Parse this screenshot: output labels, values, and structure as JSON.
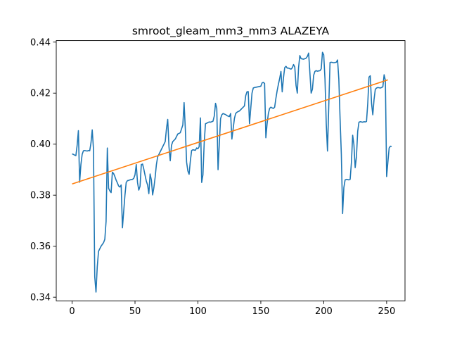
{
  "chart_data": {
    "type": "line",
    "title": "smroot_gleam_mm3_mm3 ALAZEYA",
    "xlabel": "",
    "ylabel": "",
    "xlim": [
      -12.6,
      264.6
    ],
    "ylim": [
      0.3386,
      0.4406
    ],
    "xticks": [
      0,
      50,
      100,
      150,
      200,
      250
    ],
    "yticks": [
      0.34,
      0.36,
      0.38,
      0.4,
      0.42,
      0.44
    ],
    "ytick_labels": [
      "0.34",
      "0.36",
      "0.38",
      "0.40",
      "0.42",
      "0.44"
    ],
    "grid": false,
    "colors": {
      "series": "#1f77b4",
      "trend": "#ff7f0e"
    },
    "series": [
      {
        "values": [
          0.3962,
          0.396,
          0.3957,
          0.3955,
          0.3995,
          0.4053,
          0.3851,
          0.392,
          0.396,
          0.3974,
          0.3975,
          0.3974,
          0.3973,
          0.3975,
          0.3974,
          0.4005,
          0.4056,
          0.398,
          0.348,
          0.342,
          0.352,
          0.358,
          0.359,
          0.36,
          0.3607,
          0.3614,
          0.3627,
          0.3697,
          0.3985,
          0.3827,
          0.3817,
          0.381,
          0.389,
          0.3885,
          0.3873,
          0.3859,
          0.3848,
          0.3836,
          0.3832,
          0.384,
          0.3672,
          0.3736,
          0.38,
          0.385,
          0.3857,
          0.3858,
          0.386,
          0.3861,
          0.3862,
          0.3866,
          0.388,
          0.392,
          0.385,
          0.382,
          0.3835,
          0.392,
          0.3922,
          0.3902,
          0.3878,
          0.3855,
          0.384,
          0.3806,
          0.3883,
          0.386,
          0.3801,
          0.383,
          0.387,
          0.392,
          0.395,
          0.396,
          0.397,
          0.398,
          0.399,
          0.4,
          0.401,
          0.406,
          0.4097,
          0.399,
          0.3935,
          0.3995,
          0.401,
          0.4015,
          0.402,
          0.403,
          0.404,
          0.4042,
          0.4045,
          0.406,
          0.4075,
          0.4163,
          0.406,
          0.393,
          0.3895,
          0.3882,
          0.3935,
          0.3975,
          0.3978,
          0.3977,
          0.3976,
          0.3985,
          0.3982,
          0.399,
          0.4103,
          0.385,
          0.388,
          0.4005,
          0.408,
          0.4082,
          0.4085,
          0.4087,
          0.4086,
          0.4088,
          0.409,
          0.411,
          0.416,
          0.414,
          0.39,
          0.4,
          0.41,
          0.4115,
          0.412,
          0.4118,
          0.4116,
          0.4112,
          0.411,
          0.4108,
          0.412,
          0.402,
          0.406,
          0.41,
          0.412,
          0.4125,
          0.4128,
          0.413,
          0.4135,
          0.414,
          0.4145,
          0.415,
          0.419,
          0.4205,
          0.4206,
          0.408,
          0.414,
          0.42,
          0.422,
          0.4222,
          0.4223,
          0.4224,
          0.4225,
          0.4226,
          0.4227,
          0.424,
          0.4242,
          0.4238,
          0.4025,
          0.408,
          0.412,
          0.414,
          0.4145,
          0.4142,
          0.414,
          0.4145,
          0.418,
          0.421,
          0.4235,
          0.4258,
          0.4285,
          0.4205,
          0.426,
          0.43,
          0.4305,
          0.4298,
          0.4298,
          0.4296,
          0.4294,
          0.4299,
          0.4312,
          0.4302,
          0.423,
          0.42,
          0.43,
          0.4347,
          0.4335,
          0.4334,
          0.4333,
          0.4335,
          0.4337,
          0.4344,
          0.4357,
          0.428,
          0.42,
          0.4215,
          0.427,
          0.4285,
          0.4288,
          0.4286,
          0.4287,
          0.4288,
          0.4295,
          0.436,
          0.435,
          0.4255,
          0.408,
          0.3973,
          0.415,
          0.432,
          0.4321,
          0.432,
          0.4319,
          0.432,
          0.4321,
          0.433,
          0.4255,
          0.41,
          0.396,
          0.3728,
          0.383,
          0.386,
          0.3862,
          0.3861,
          0.386,
          0.3862,
          0.3927,
          0.4035,
          0.3998,
          0.3908,
          0.395,
          0.405,
          0.4086,
          0.4088,
          0.4087,
          0.4086,
          0.4088,
          0.4087,
          0.4089,
          0.416,
          0.4263,
          0.4268,
          0.416,
          0.4115,
          0.4175,
          0.4215,
          0.422,
          0.4222,
          0.4221,
          0.422,
          0.4222,
          0.4225,
          0.4272,
          0.425,
          0.3873,
          0.393,
          0.3985,
          0.3992,
          0.3991
        ]
      },
      {
        "x": [
          0,
          251
        ],
        "values": [
          0.3844,
          0.4252
        ]
      }
    ]
  }
}
